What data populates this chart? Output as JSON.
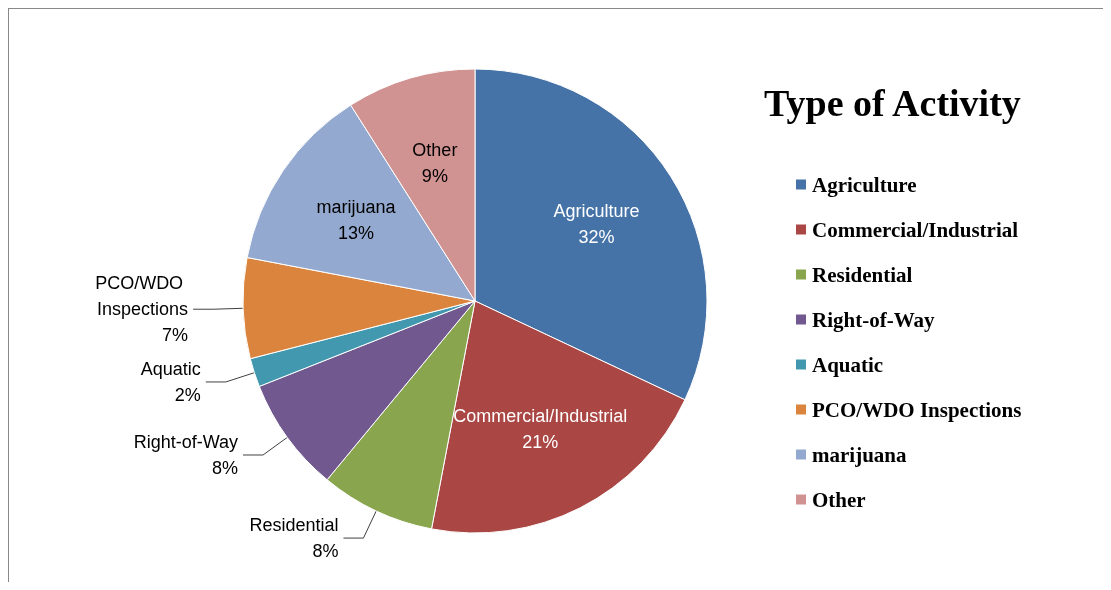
{
  "chart_data": {
    "type": "pie",
    "legend_title": "Type of Activity",
    "legend": "right",
    "value_labels": [
      "32%",
      "21%",
      "8%",
      "8%",
      "2%",
      "7%",
      "13%",
      "9%"
    ],
    "categories": [
      "Agriculture",
      "Commercial/Industrial",
      "Residential",
      "Right-of-Way",
      "Aquatic",
      "PCO/WDO Inspections",
      "marijuana",
      "Other"
    ],
    "values": [
      32,
      21,
      8,
      8,
      2,
      7,
      13,
      9
    ],
    "colors": [
      "#4572a7",
      "#aa4643",
      "#89a54e",
      "#71588f",
      "#4198af",
      "#db843d",
      "#93a9cf",
      "#d19392"
    ]
  }
}
